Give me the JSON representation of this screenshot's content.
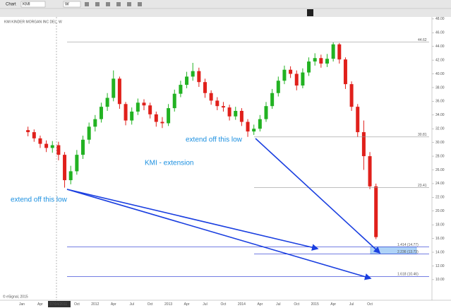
{
  "toolbar": {
    "tab": "Chart",
    "symbol": "KMI",
    "interval": "W"
  },
  "footer": "© eSignal, 2015",
  "chart_data": {
    "type": "candlestick",
    "title": "KMI KINDER MORGAN INC DEL, W",
    "categories": [
      "Jan",
      null,
      null,
      "Apr",
      null,
      null,
      "07/04/2011",
      null,
      null,
      "Oct",
      null,
      null,
      "2012",
      null,
      null,
      "Apr",
      null,
      null,
      "Jul",
      null,
      null,
      "Oct",
      null,
      null,
      "2013",
      null,
      null,
      "Apr",
      null,
      null,
      "Jul",
      null,
      null,
      "Oct",
      null,
      null,
      "2014",
      null,
      null,
      "Apr",
      null,
      null,
      "Jul",
      null,
      null,
      "Oct",
      null,
      null,
      "2015",
      null,
      null,
      "Apr",
      null,
      null,
      "Jul",
      null,
      null,
      "Oct",
      null
    ],
    "open": [
      null,
      31.8,
      31.5,
      30.6,
      29.8,
      29.2,
      29.6,
      28.2,
      24.5,
      25.8,
      28.2,
      30.4,
      32.3,
      33.4,
      35.2,
      36.5,
      39.3,
      35.6,
      33.2,
      34.5,
      35.8,
      35.4,
      34.1,
      33.0,
      32.8,
      35.0,
      37.1,
      38.4,
      39.6,
      40.4,
      38.8,
      37.2,
      36.1,
      35.3,
      35.1,
      33.8,
      34.6,
      33.0,
      31.6,
      32.0,
      33.4,
      35.3,
      37.2,
      39.0,
      40.6,
      40.0,
      38.3,
      40.2,
      41.8,
      42.3,
      41.5,
      42.2,
      44.3,
      42.1,
      38.5,
      35.2,
      31.5,
      28.0,
      23.6
    ],
    "high": [
      null,
      32.3,
      31.9,
      31.0,
      30.3,
      30.2,
      30.1,
      28.6,
      26.6,
      28.9,
      31.0,
      32.9,
      34.0,
      35.8,
      37.2,
      40.5,
      39.6,
      35.9,
      35.1,
      36.4,
      36.3,
      35.8,
      34.5,
      33.7,
      35.6,
      37.7,
      39.0,
      40.3,
      41.6,
      40.9,
      39.3,
      37.6,
      36.6,
      35.9,
      35.5,
      35.2,
      35.0,
      33.4,
      32.6,
      34.0,
      35.9,
      37.8,
      39.6,
      41.2,
      41.1,
      40.5,
      40.8,
      42.4,
      43.0,
      42.8,
      42.9,
      44.62,
      44.5,
      42.4,
      38.9,
      35.6,
      33.2,
      28.6,
      24.0
    ],
    "low": [
      null,
      30.9,
      30.1,
      29.2,
      28.6,
      28.5,
      27.4,
      23.41,
      23.9,
      25.3,
      27.6,
      29.8,
      31.6,
      32.9,
      34.6,
      36.0,
      34.9,
      32.5,
      32.6,
      34.0,
      34.7,
      33.5,
      32.3,
      32.1,
      32.4,
      34.5,
      36.6,
      37.9,
      39.0,
      38.1,
      36.5,
      35.5,
      34.7,
      34.5,
      33.2,
      33.3,
      32.4,
      30.81,
      31.1,
      31.6,
      33.0,
      34.9,
      36.7,
      38.5,
      39.4,
      37.6,
      37.9,
      39.7,
      41.2,
      40.9,
      41.0,
      41.8,
      41.5,
      37.8,
      34.6,
      30.8,
      26.0,
      23.2,
      15.9
    ],
    "close": [
      null,
      31.5,
      30.6,
      29.8,
      29.2,
      29.6,
      28.2,
      24.5,
      25.8,
      28.2,
      30.4,
      32.3,
      33.4,
      35.2,
      36.5,
      39.3,
      35.6,
      33.2,
      34.5,
      35.8,
      35.4,
      34.1,
      33.0,
      32.8,
      35.0,
      37.1,
      38.4,
      39.6,
      40.4,
      38.8,
      37.2,
      36.1,
      35.3,
      35.1,
      33.8,
      34.6,
      33.0,
      31.6,
      32.0,
      33.4,
      35.3,
      37.2,
      39.0,
      40.6,
      40.0,
      38.3,
      40.2,
      41.8,
      42.3,
      41.5,
      42.2,
      44.3,
      42.1,
      38.5,
      35.2,
      31.5,
      28.0,
      23.6,
      16.2
    ],
    "up_color": "#22b222",
    "down_color": "#e0201b",
    "ylim": [
      7,
      48.5
    ],
    "yticks": [
      {
        "value": 10,
        "label": "10.00"
      },
      {
        "value": 12,
        "label": "12.00"
      },
      {
        "value": 14,
        "label": "14.00"
      },
      {
        "value": 16,
        "label": "16.00"
      },
      {
        "value": 18,
        "label": "18.00"
      },
      {
        "value": 20,
        "label": "20.00"
      },
      {
        "value": 22,
        "label": "22.00"
      },
      {
        "value": 24,
        "label": "24.00"
      },
      {
        "value": 26,
        "label": "26.00"
      },
      {
        "value": 28,
        "label": "28.00"
      },
      {
        "value": 30,
        "label": "30.00"
      },
      {
        "value": 32,
        "label": "32.00"
      },
      {
        "value": 34,
        "label": "34.00"
      },
      {
        "value": 36,
        "label": "36.00"
      },
      {
        "value": 38,
        "label": "38.00"
      },
      {
        "value": 40,
        "label": "40.00"
      },
      {
        "value": 42,
        "label": "42.00"
      },
      {
        "value": 44,
        "label": "44.00"
      },
      {
        "value": 46,
        "label": "46.00"
      },
      {
        "value": 48,
        "label": "48.00"
      }
    ],
    "levels": [
      {
        "value": 44.62,
        "label": "44.62"
      },
      {
        "value": 30.81,
        "label": "30.81"
      },
      {
        "value": 23.41,
        "label": "23.41"
      }
    ],
    "fib_levels": [
      {
        "value": 14.77,
        "label": "1.414 (14.77)"
      },
      {
        "value": 13.73,
        "label": "2.236 (13.73)"
      },
      {
        "value": 10.46,
        "label": "1.618 (10.46)"
      }
    ],
    "annotations": [
      "extend off this low",
      "KMI - extension",
      "extend off this low"
    ]
  }
}
